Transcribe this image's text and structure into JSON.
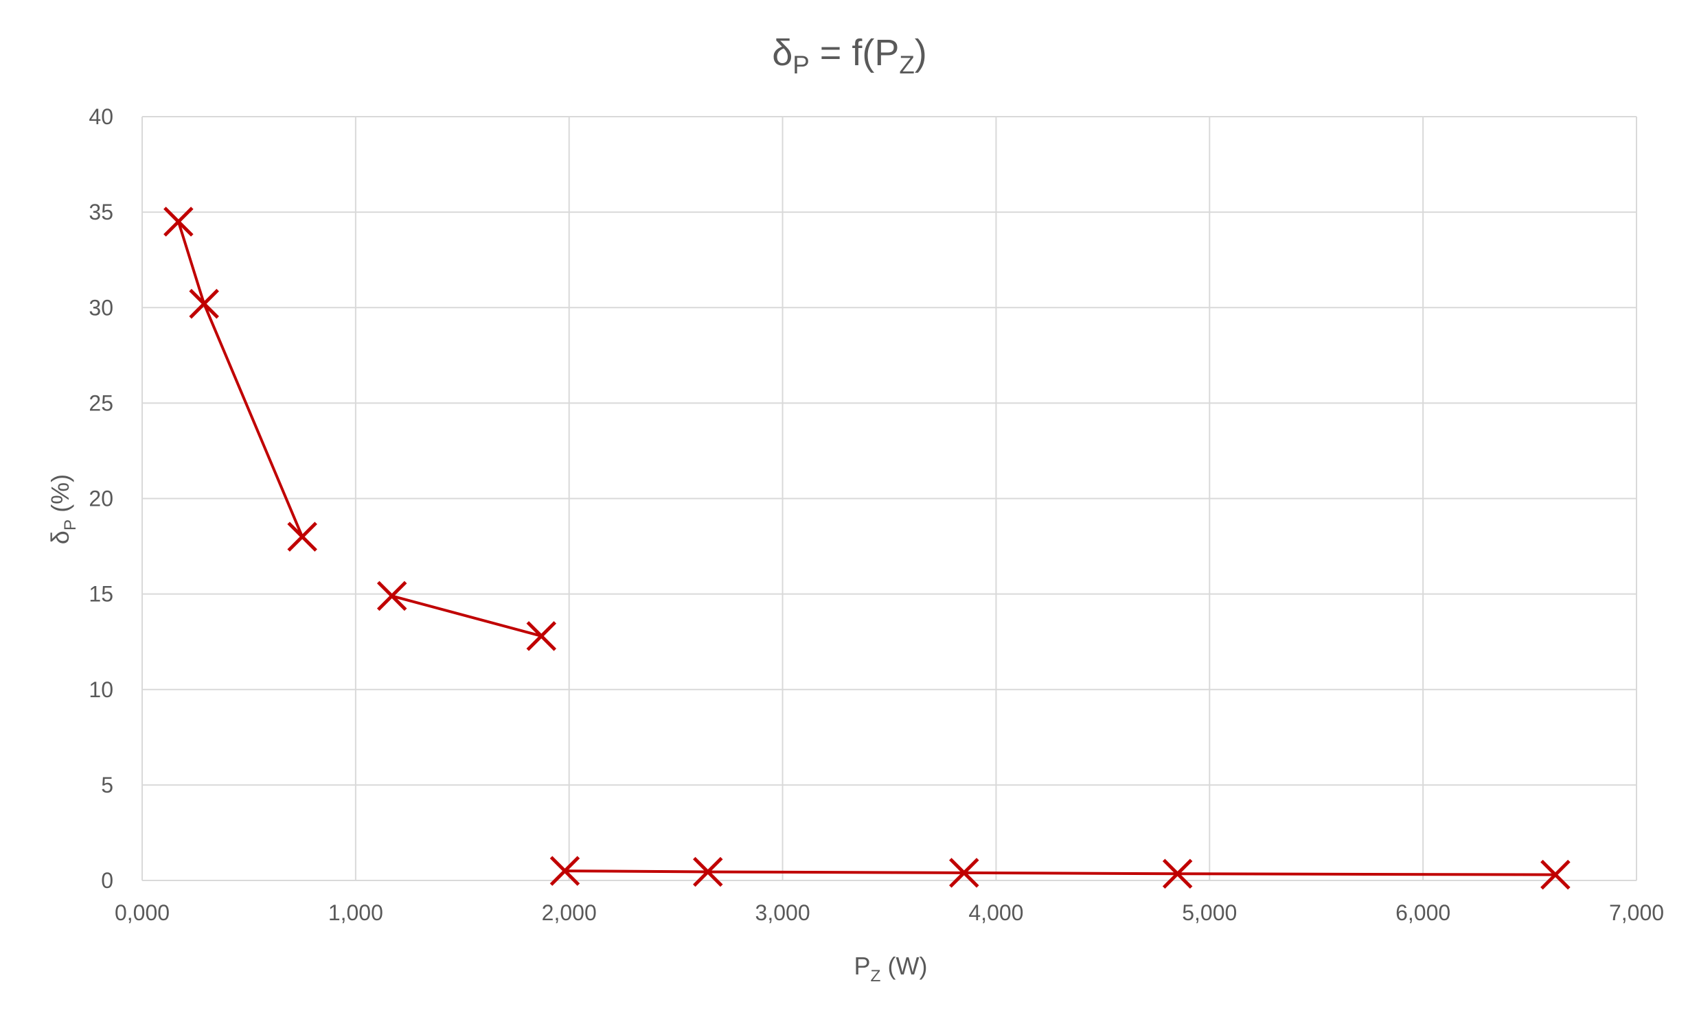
{
  "chart_data": {
    "type": "scatter",
    "title": {
      "base": "δ",
      "sub1": "P",
      "mid": " = f(P",
      "sub2": "Z",
      "end": ")"
    },
    "xlabel": {
      "base": "P",
      "sub": "Z",
      "rest": " (W)"
    },
    "ylabel": {
      "base": "δ",
      "sub": "P",
      "rest": " (%)"
    },
    "xlim": [
      0,
      7000
    ],
    "ylim": [
      0,
      40
    ],
    "x_ticks": [
      0,
      1000,
      2000,
      3000,
      4000,
      5000,
      6000,
      7000
    ],
    "x_tick_labels": [
      "0,000",
      "1,000",
      "2,000",
      "3,000",
      "4,000",
      "5,000",
      "6,000",
      "7,000"
    ],
    "y_ticks": [
      0,
      5,
      10,
      15,
      20,
      25,
      30,
      35,
      40
    ],
    "y_tick_labels": [
      "0",
      "5",
      "10",
      "15",
      "20",
      "25",
      "30",
      "35",
      "40"
    ],
    "grid": true,
    "marker": "x",
    "color": "#C00000",
    "segments": [
      {
        "x": [
          170,
          290,
          750
        ],
        "y": [
          34.5,
          30.2,
          18.0
        ]
      },
      {
        "x": [
          1170,
          1870
        ],
        "y": [
          14.9,
          12.8
        ]
      },
      {
        "x": [
          1980,
          2650,
          3850,
          4850,
          6620
        ],
        "y": [
          0.5,
          0.45,
          0.4,
          0.35,
          0.3
        ]
      }
    ]
  }
}
